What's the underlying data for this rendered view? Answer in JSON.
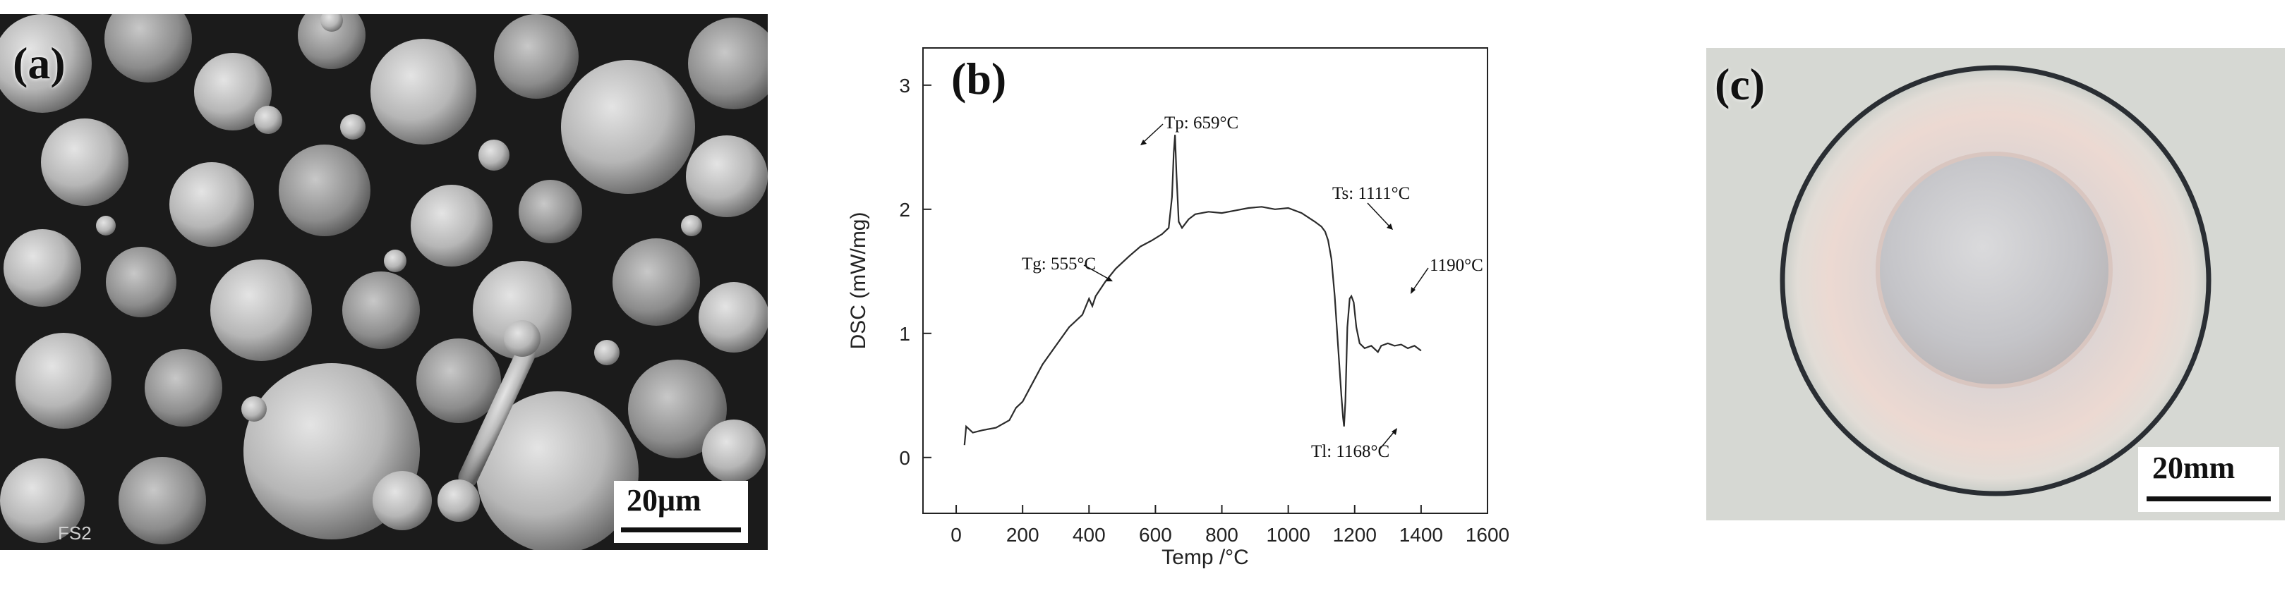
{
  "panels": {
    "a": {
      "label": "(a)",
      "scale_bar": "20μm",
      "corner_tag": "FS2",
      "image_description_icon": "sem-powder-micrograph",
      "colors": {
        "background": "#1a1a1a",
        "particle_light": "#d6d6d6",
        "particle_dark": "#5a5a5a"
      }
    },
    "b": {
      "label": "(b)",
      "annotations": {
        "tp": "Tp: 659°C",
        "ts": "Ts: 1111°C",
        "tg": "Tg: 555°C",
        "t1190": "1190°C",
        "tl": "Tl: 1168°C"
      }
    },
    "c": {
      "label": "(c)",
      "scale_bar": "20mm",
      "image_description_icon": "cast-disc-photo",
      "colors": {
        "background": "#d8d9d4",
        "rim": "#2a2e33",
        "disc": "#e9d6cf",
        "center": "#cfcfd1"
      }
    }
  },
  "chart_data": {
    "type": "line",
    "title": "",
    "xlabel": "Temp /°C",
    "ylabel": "DSC (mW/mg)",
    "xlim": [
      -100,
      1600
    ],
    "ylim": [
      -0.45,
      3.3
    ],
    "xticks": [
      "0",
      "200",
      "400",
      "600",
      "800",
      "1000",
      "1200",
      "1400",
      "1600"
    ],
    "yticks": [
      "0",
      "1",
      "2",
      "3"
    ],
    "series": [
      {
        "name": "DSC",
        "color": "#2b2b2b",
        "x": [
          25,
          30,
          50,
          80,
          120,
          160,
          180,
          200,
          230,
          260,
          300,
          340,
          380,
          400,
          410,
          420,
          450,
          480,
          520,
          555,
          590,
          620,
          640,
          650,
          655,
          659,
          663,
          670,
          680,
          700,
          720,
          760,
          800,
          840,
          880,
          920,
          960,
          1000,
          1040,
          1080,
          1100,
          1111,
          1120,
          1130,
          1140,
          1150,
          1160,
          1165,
          1168,
          1172,
          1178,
          1185,
          1190,
          1197,
          1205,
          1215,
          1230,
          1250,
          1270,
          1280,
          1300,
          1320,
          1340,
          1360,
          1380,
          1400
        ],
        "y": [
          0.1,
          0.25,
          0.2,
          0.22,
          0.24,
          0.3,
          0.4,
          0.45,
          0.6,
          0.75,
          0.9,
          1.05,
          1.15,
          1.28,
          1.22,
          1.3,
          1.42,
          1.52,
          1.62,
          1.7,
          1.75,
          1.8,
          1.85,
          2.1,
          2.45,
          2.6,
          2.3,
          1.9,
          1.85,
          1.92,
          1.96,
          1.98,
          1.97,
          1.99,
          2.01,
          2.02,
          2.0,
          2.01,
          1.97,
          1.9,
          1.86,
          1.82,
          1.75,
          1.6,
          1.3,
          0.9,
          0.5,
          0.32,
          0.25,
          0.45,
          1.05,
          1.28,
          1.3,
          1.25,
          1.05,
          0.92,
          0.88,
          0.9,
          0.85,
          0.9,
          0.92,
          0.9,
          0.91,
          0.88,
          0.9,
          0.86
        ]
      }
    ]
  }
}
